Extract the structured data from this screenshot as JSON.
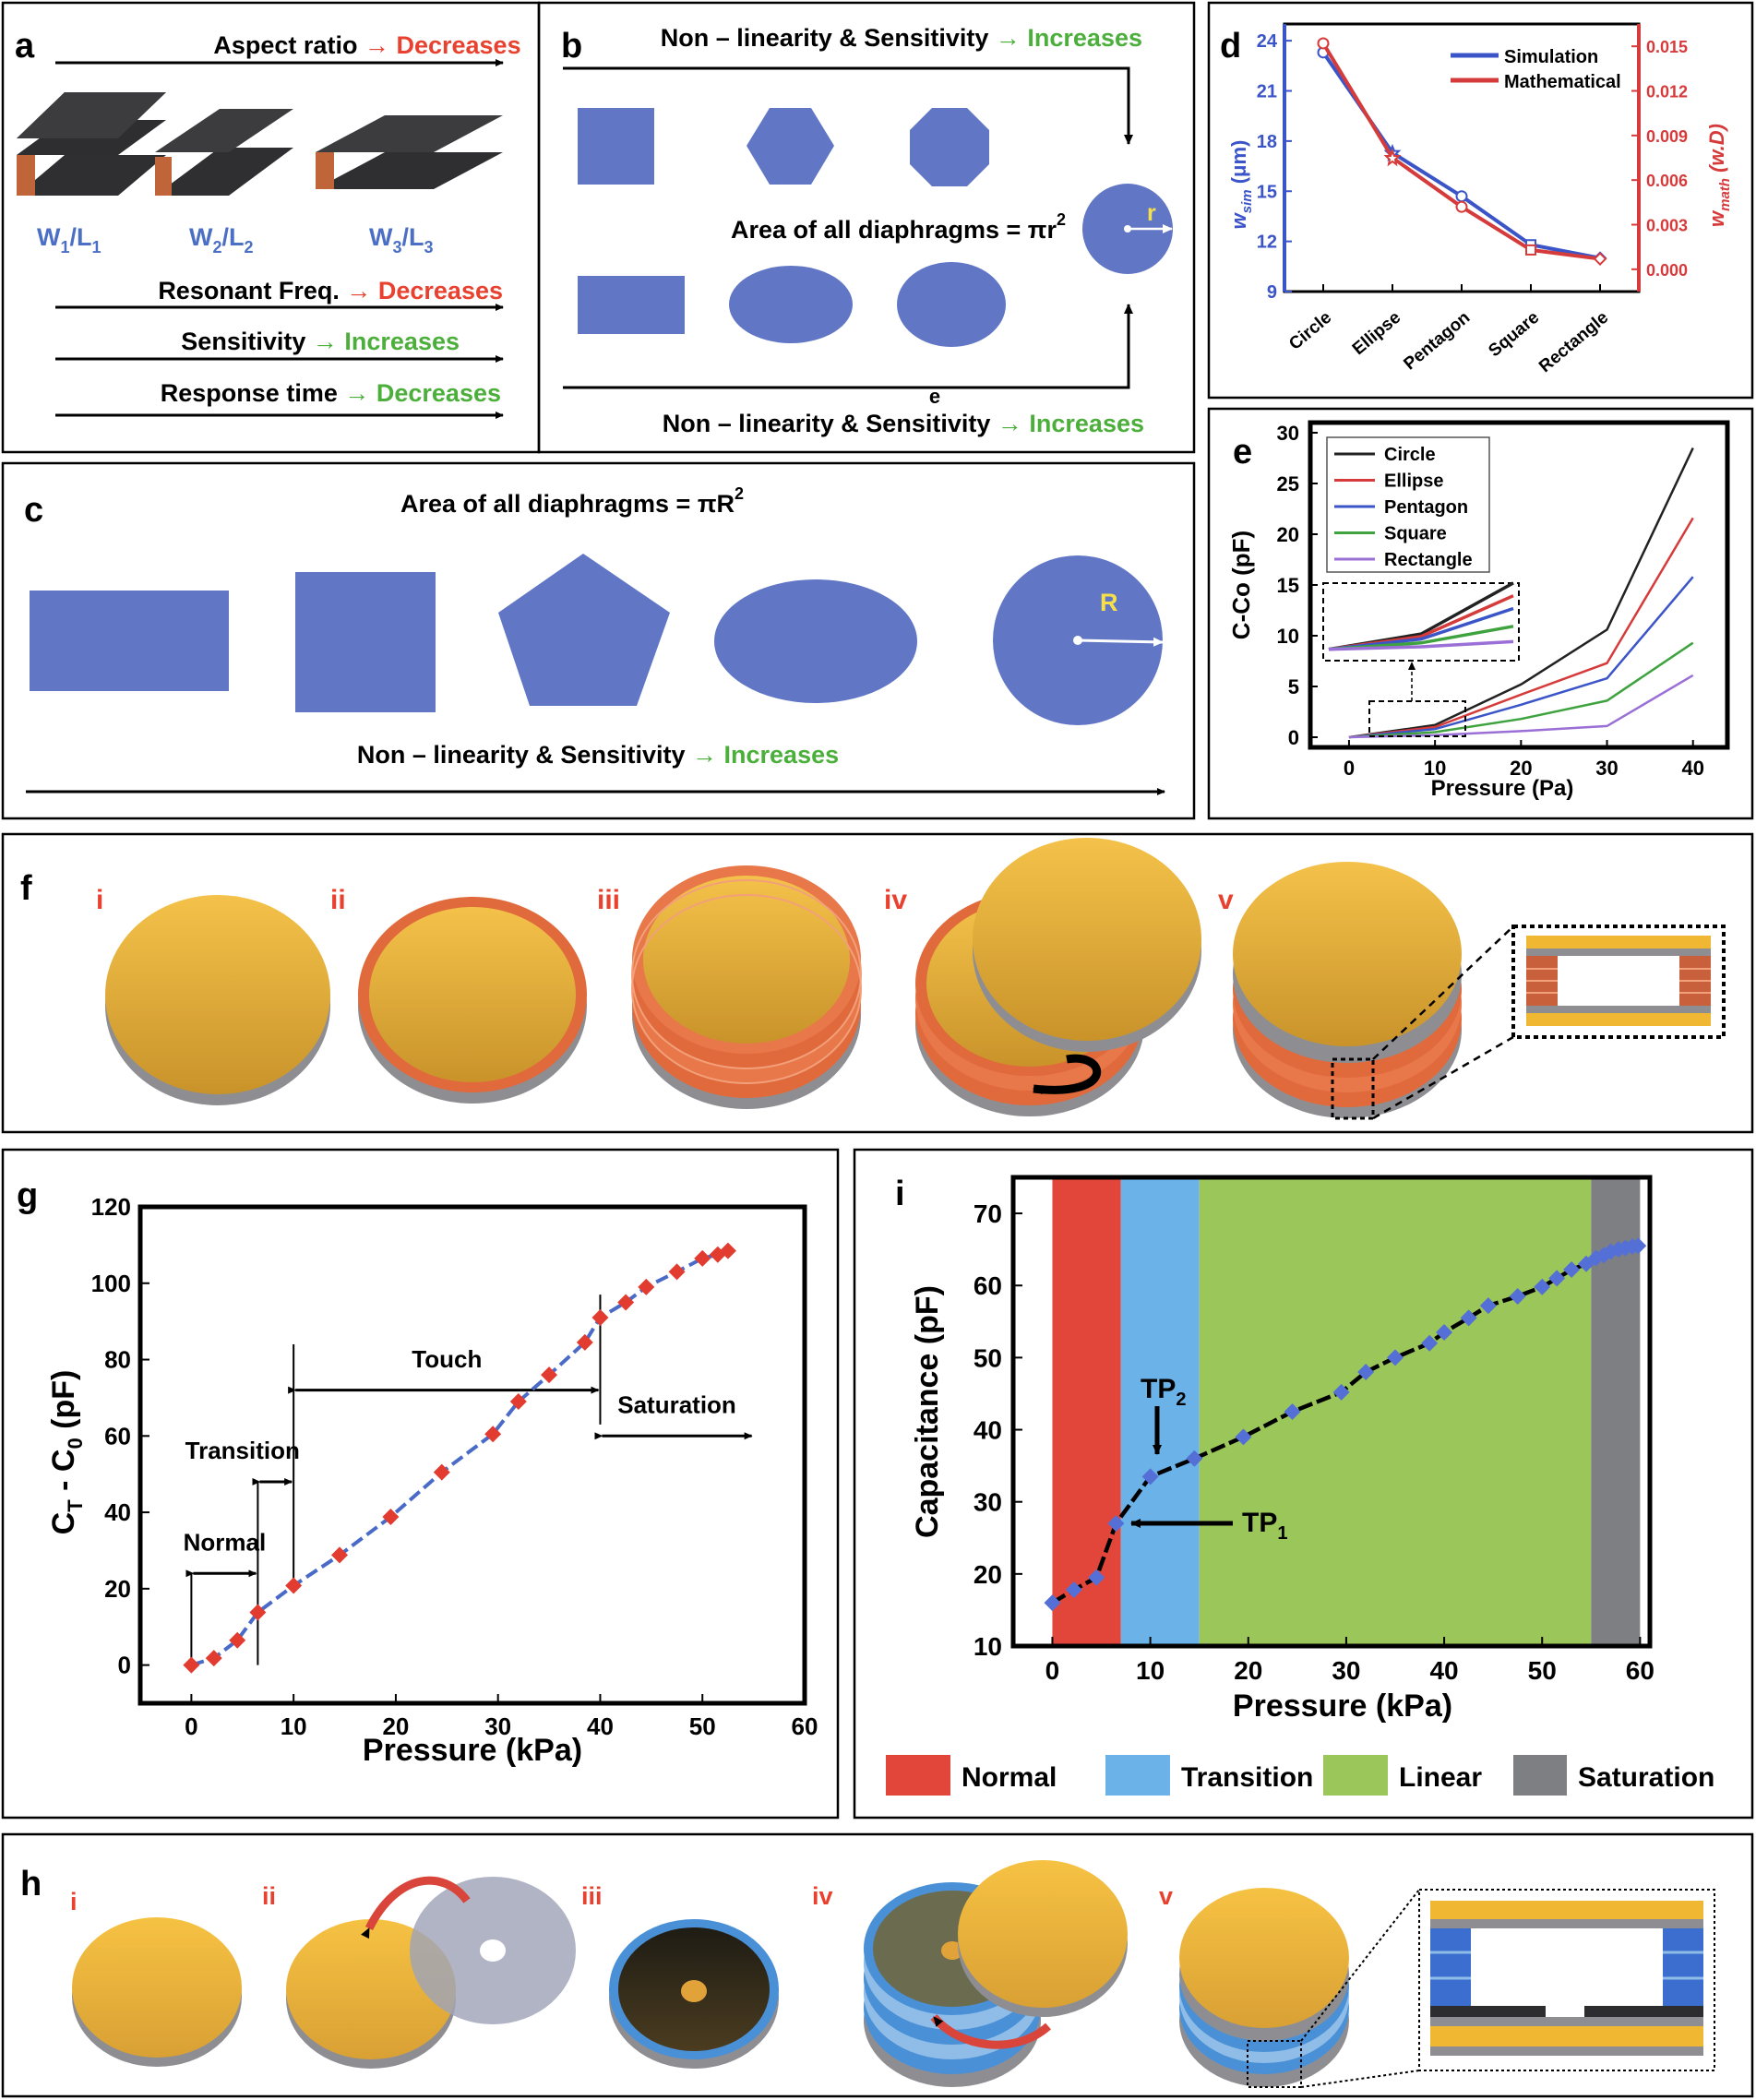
{
  "panel_a": {
    "letter": "a",
    "top_label": "Aspect ratio",
    "top_value": "Decreases",
    "ratio1_main": "W",
    "ratio1_s1": "1",
    "ratio1_mid": "/L",
    "ratio1_s2": "1",
    "ratio2_main": "W",
    "ratio2_s1": "2",
    "ratio2_mid": "/L",
    "ratio2_s2": "2",
    "ratio3_main": "W",
    "ratio3_s1": "3",
    "ratio3_mid": "/L",
    "ratio3_s2": "3",
    "row1_label": "Resonant Freq.",
    "row1_value": "Decreases",
    "row2_label": "Sensitivity",
    "row2_value": "Increases",
    "row3_label": "Response time",
    "row3_value": "Decreases",
    "arrow": "→"
  },
  "panel_b": {
    "letter": "b",
    "top_label": "Non – linearity & Sensitivity",
    "top_value": "Increases",
    "area_label": "Area of all diaphragms = πr",
    "area_sup": "2",
    "radius": "r",
    "stray": "e",
    "bottom_label": "Non – linearity & Sensitivity",
    "bottom_value": "Increases"
  },
  "panel_c": {
    "letter": "c",
    "area_label": "Area of all diaphragms = πR",
    "area_sup": "2",
    "radius": "R",
    "bottom_label": "Non – linearity & Sensitivity",
    "bottom_value": "Increases"
  },
  "panel_f": {
    "letter": "f",
    "steps": [
      "i",
      "ii",
      "iii",
      "iv",
      "v"
    ]
  },
  "panel_h": {
    "letter": "h",
    "steps": [
      "i",
      "ii",
      "iii",
      "iv",
      "v"
    ]
  },
  "colors": {
    "shape_blue": "#6177c6",
    "red_text": "#e8412f",
    "green_text": "#4caf3c",
    "blue_text": "#4a6fc4",
    "gold": "#f0b732",
    "orange": "#e06a3c",
    "normal": "#e2463a",
    "transition": "#6bb2e8",
    "linear": "#9bc65a",
    "saturation": "#7e7f83"
  },
  "chart_data": [
    {
      "id": "d",
      "letter": "d",
      "type": "line",
      "categories": [
        "Circle",
        "Ellipse",
        "Pentagon",
        "Square",
        "Rectangle"
      ],
      "ylabel_main": "w",
      "ylabel_sub": "sim",
      "ylabel_unit": " (μm)",
      "y2label_main": "w",
      "y2label_sub": "math",
      "y2label_unit": " (w.D)",
      "ylim": [
        9,
        25
      ],
      "yticks": [
        "9",
        "12",
        "15",
        "18",
        "21",
        "24"
      ],
      "y2lim": [
        -0.0015,
        0.0165
      ],
      "y2ticks": [
        "0.000",
        "0.003",
        "0.006",
        "0.009",
        "0.012",
        "0.015"
      ],
      "series": [
        {
          "name": "Simulation",
          "values": [
            23.3,
            17.3,
            14.7,
            11.8,
            11.0
          ],
          "color": "#3b55c8"
        },
        {
          "name": "Mathematical",
          "values": [
            0.0152,
            0.0075,
            0.0042,
            0.0013,
            0.0007
          ],
          "color": "#d63b3b"
        }
      ]
    },
    {
      "id": "e",
      "letter": "e",
      "type": "line",
      "x": [
        0,
        10,
        20,
        30,
        40
      ],
      "xlabel": "Pressure (Pa)",
      "ylabel": "C-Co (pF)",
      "xlim": [
        -4.5,
        44
      ],
      "ylim": [
        -1,
        31
      ],
      "xticks": [
        "0",
        "10",
        "20",
        "30",
        "40"
      ],
      "yticks": [
        "0",
        "5",
        "10",
        "15",
        "20",
        "25",
        "30"
      ],
      "series": [
        {
          "name": "Circle",
          "values": [
            0,
            1.2,
            5.2,
            10.6,
            28.5
          ],
          "color": "#222222"
        },
        {
          "name": "Ellipse",
          "values": [
            0,
            1.0,
            4.2,
            7.3,
            21.6
          ],
          "color": "#d63b3b"
        },
        {
          "name": "Pentagon",
          "values": [
            0,
            0.8,
            3.2,
            5.8,
            15.8
          ],
          "color": "#3b55c8"
        },
        {
          "name": "Square",
          "values": [
            0,
            0.5,
            1.8,
            3.6,
            9.3
          ],
          "color": "#3ea33e"
        },
        {
          "name": "Rectangle",
          "values": [
            0,
            0.2,
            0.6,
            1.1,
            6.1
          ],
          "color": "#9a6fd6"
        }
      ]
    },
    {
      "id": "g",
      "letter": "g",
      "type": "scatter",
      "xlabel": "Pressure (kPa)",
      "ylabel_main": "C",
      "ylabel_s1": "T",
      "ylabel_mid": " - C",
      "ylabel_s2": "0",
      "ylabel_unit": " (pF)",
      "xlim": [
        -5,
        60
      ],
      "ylim": [
        -10,
        120
      ],
      "xticks": [
        "0",
        "10",
        "20",
        "30",
        "40",
        "50",
        "60"
      ],
      "yticks": [
        "0",
        "20",
        "40",
        "60",
        "80",
        "100",
        "120"
      ],
      "x": [
        0,
        2.2,
        4.5,
        6.5,
        10,
        14.5,
        19.5,
        24.5,
        29.5,
        32,
        35,
        38.5,
        40,
        42.5,
        44.5,
        47.5,
        50,
        51.5,
        52.5
      ],
      "y": [
        0,
        1.8,
        6.5,
        13.8,
        20.8,
        28.8,
        38.8,
        50.5,
        60.5,
        69,
        76,
        84.5,
        91,
        95,
        99,
        103,
        106.5,
        107.5,
        108.5
      ],
      "annotations": [
        {
          "text": "Normal",
          "from": 0,
          "to": 6.5,
          "y": 24,
          "label_y": 30
        },
        {
          "text": "Transition",
          "from": 6.5,
          "to": 10,
          "y": 48,
          "label_y": 54
        },
        {
          "text": "Touch",
          "from": 10,
          "to": 40,
          "y": 72,
          "label_y": 78
        },
        {
          "text": "Saturation",
          "from": 40,
          "to": 55,
          "y": 60,
          "label_y": 66
        }
      ],
      "vlines": [
        0,
        6.5,
        10,
        40
      ]
    },
    {
      "id": "i",
      "letter": "i",
      "type": "line",
      "xlabel": "Pressure (kPa)",
      "ylabel": "Capacitance (pF)",
      "xlim": [
        -4,
        61
      ],
      "ylim": [
        10,
        75
      ],
      "xticks": [
        "0",
        "10",
        "20",
        "30",
        "40",
        "50",
        "60"
      ],
      "yticks": [
        "10",
        "20",
        "30",
        "40",
        "50",
        "60",
        "70"
      ],
      "x": [
        0,
        2.2,
        4.5,
        6.5,
        10,
        14.5,
        19.5,
        24.5,
        29.5,
        32,
        35,
        38.5,
        40,
        42.5,
        44.5,
        47.5,
        50,
        51.5,
        53,
        54.5,
        55.5,
        56.3,
        57,
        57.8,
        58.5,
        59.2,
        59.8
      ],
      "y": [
        16,
        17.8,
        19.5,
        27,
        33.5,
        36,
        39,
        42.5,
        45.2,
        48,
        50,
        52,
        53.5,
        55.5,
        57.2,
        58.5,
        59.8,
        61,
        62.2,
        63,
        63.8,
        64.2,
        64.7,
        65,
        65.2,
        65.4,
        65.5
      ],
      "regions": [
        {
          "name": "Normal",
          "from": 0,
          "to": 7,
          "color": "#e2463a"
        },
        {
          "name": "Transition",
          "from": 7,
          "to": 15,
          "color": "#6bb2e8"
        },
        {
          "name": "Linear",
          "from": 15,
          "to": 55,
          "color": "#9bc65a"
        },
        {
          "name": "Saturation",
          "from": 55,
          "to": 60,
          "color": "#7e7f83"
        }
      ],
      "tp1": {
        "main": "TP",
        "sub": "1"
      },
      "tp2": {
        "main": "TP",
        "sub": "2"
      }
    }
  ]
}
